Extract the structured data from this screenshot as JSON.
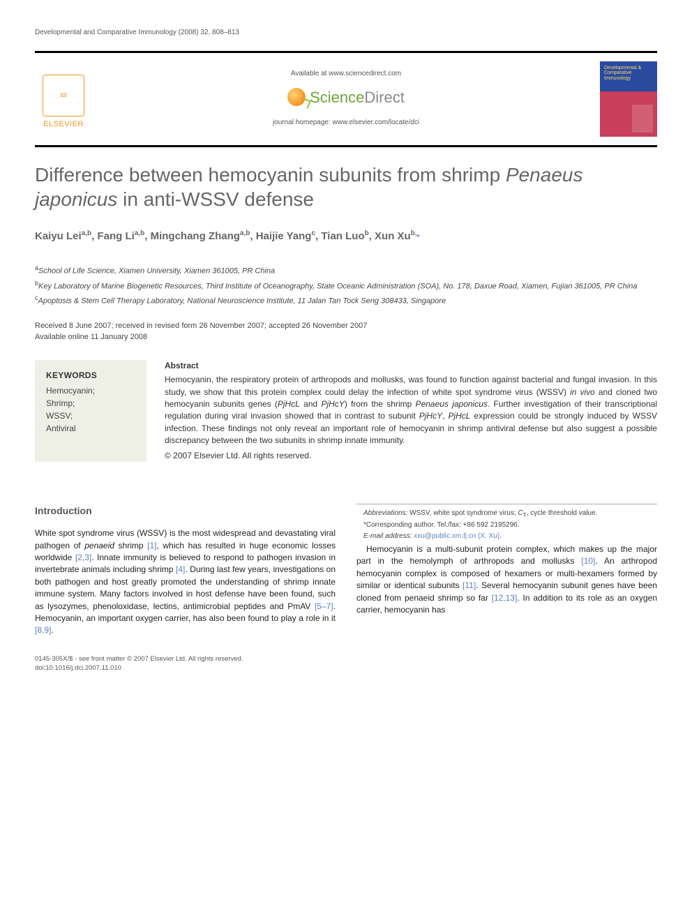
{
  "running_head": "Developmental and Comparative Immunology (2008) 32, 808–813",
  "header": {
    "available_at": "Available at www.sciencedirect.com",
    "sd_logo_text_prefix": "Science",
    "sd_logo_text_suffix": "Direct",
    "homepage": "journal homepage: www.elsevier.com/locate/dci",
    "elsevier_label": "ELSEVIER",
    "journal_cover_title": "Developmental & Comparative Immunology"
  },
  "title_html": "Difference between hemocyanin subunits from shrimp <em>Penaeus japonicus</em> in anti-WSSV defense",
  "authors_html": "Kaiyu Lei<sup>a,b</sup>, Fang Li<sup>a,b</sup>, Mingchang Zhang<sup>a,b</sup>, Haijie Yang<sup>c</sup>, Tian Luo<sup>b</sup>, Xun Xu<sup>b,</sup><a href=\"#\"><span class=\"star\">*</span></a>",
  "affiliations": [
    {
      "sup": "a",
      "text": "School of Life Science, Xiamen University, Xiamen 361005, PR China"
    },
    {
      "sup": "b",
      "text": "Key Laboratory of Marine Biogenetic Resources, Third Institute of Oceanography, State Oceanic Administration (SOA), No. 178, Daxue Road, Xiamen, Fujian 361005, PR China"
    },
    {
      "sup": "c",
      "text": "Apoptosis & Stem Cell Therapy Laboratory, National Neuroscience Institute, 11 Jalan Tan Tock Seng 308433, Singapore"
    }
  ],
  "dates": {
    "line1": "Received 8 June 2007; received in revised form 26 November 2007; accepted 26 November 2007",
    "line2": "Available online 11 January 2008"
  },
  "keywords": {
    "heading": "KEYWORDS",
    "items": "Hemocyanin;\nShrimp;\nWSSV;\nAntiviral"
  },
  "abstract": {
    "heading": "Abstract",
    "body_html": "Hemocyanin, the respiratory protein of arthropods and mollusks, was found to function against bacterial and fungal invasion. In this study, we show that this protein complex could delay the infection of white spot syndrome virus (WSSV) <em>in vivo</em> and cloned two hemocyanin subunits genes (<em>PjHcL</em> and <em>PjHcY</em>) from the shrimp <em>Penaeus japonicus</em>. Further investigation of their transcriptional regulation during viral invasion showed that in contrast to subunit <em>PjHcY</em>, <em>PjHcL</em> expression could be strongly induced by WSSV infection. These findings not only reveal an important role of hemocyanin in shrimp antiviral defense but also suggest a possible discrepancy between the two subunits in shrimp innate immunity.",
    "copyright": "© 2007 Elsevier Ltd. All rights reserved."
  },
  "body": {
    "intro_head": "Introduction",
    "p1_html": "White spot syndrome virus (WSSV) is the most widespread and devastating viral pathogen of <em>penaeid</em> shrimp <span class=\"cite\">[1]</span>, which has resulted in huge economic losses worldwide <span class=\"cite\">[2,3]</span>. Innate immunity is believed to respond to pathogen invasion in invertebrate animals including shrimp <span class=\"cite\">[4]</span>. During last few years, investigations on both pathogen and host greatly promoted the understanding of shrimp innate immune system. Many factors involved in host defense have been found, such as lysozymes, phenoloxidase, lectins, antimicrobial peptides and PmAV <span class=\"cite\">[5–7]</span>. Hemocyanin, an important oxygen carrier, has also been found to play a role in it <span class=\"cite\">[8,9]</span>.",
    "p2_html": "Hemocyanin is a multi-subunit protein complex, which makes up the major part in the hemolymph of arthropods and mollusks <span class=\"cite\">[10]</span>. An arthropod hemocyanin complex is composed of hexamers or multi-hexamers formed by similar or identical subunits <span class=\"cite\">[11]</span>. Several hemocyanin subunit genes have been cloned from penaeid shrimp so far <span class=\"cite\">[12,13]</span>. In addition to its role as an oxygen carrier, hemocyanin has"
  },
  "footnotes": {
    "abbrev_html": "<em>Abbreviations:</em> WSSV, white spot syndrome virus; <em>C</em><sub>T</sub>, cycle threshold value.",
    "corr": "*Corresponding author. Tel./fax: +86 592 2195296.",
    "email_html": "<em>E-mail address:</em> <a href=\"#\">xxu@public.xm.fj.cn (X. Xu)</a>."
  },
  "bottom": {
    "line1": "0145-305X/$ - see front matter © 2007 Elsevier Ltd. All rights reserved.",
    "line2": "doi:10.1016/j.dci.2007.11.010"
  },
  "colors": {
    "elsevier_orange": "#f7941e",
    "link_blue": "#5b7fbf",
    "kw_bg": "#eef0e6",
    "cover_top": "#2a4aa0",
    "cover_bottom": "#c83f5b"
  }
}
